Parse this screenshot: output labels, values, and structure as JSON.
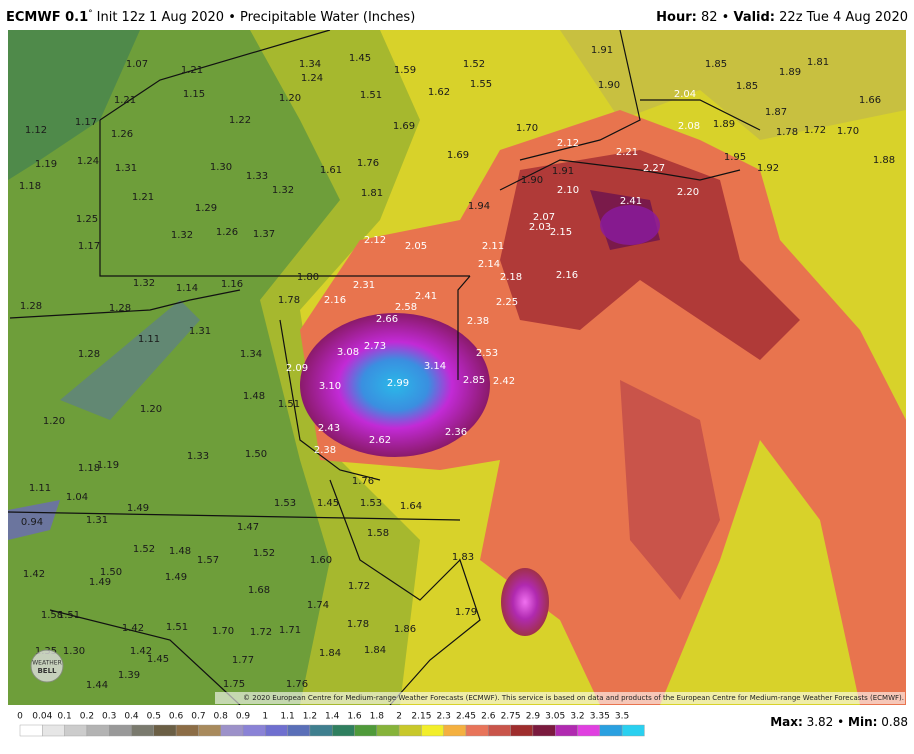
{
  "header": {
    "model": "ECMWF 0.1",
    "degree": "°",
    "info": "Init 12z 1 Aug 2020 • Precipitable Water (Inches)",
    "hour_key": "Hour:",
    "hour": "82",
    "sep": "•",
    "valid_key": "Valid:",
    "valid": "22z Tue 4 Aug 2020"
  },
  "stations": [
    "1.07",
    "1.21",
    "1.34",
    "1.24",
    "1.45",
    "1.59",
    "1.52",
    "1.55",
    "1.62",
    "1.51",
    "1.20",
    "1.15",
    "1.21",
    "1.91",
    "1.85",
    "1.89",
    "1.81",
    "1.90",
    "1.85",
    "2.04",
    "1.66",
    "1.12",
    "1.17",
    "1.26",
    "1.22",
    "1.69",
    "1.70",
    "2.12",
    "2.08",
    "1.89",
    "1.87",
    "1.78",
    "1.72",
    "1.70",
    "1.19",
    "1.24",
    "1.31",
    "1.30",
    "1.33",
    "1.76",
    "1.69",
    "1.61",
    "2.21",
    "1.95",
    "1.92",
    "1.88",
    "1.18",
    "1.21",
    "1.29",
    "1.32",
    "1.81",
    "1.90",
    "1.91",
    "2.10",
    "2.27",
    "2.20",
    "2.41",
    "1.94",
    "1.32",
    "1.26",
    "1.37",
    "2.12",
    "2.05",
    "2.11",
    "2.07",
    "2.03",
    "2.15",
    "1.17",
    "1.25",
    "1.32",
    "1.14",
    "1.16",
    "1.80",
    "2.31",
    "1.78",
    "2.16",
    "2.41",
    "2.58",
    "2.14",
    "2.18",
    "2.16",
    "2.25",
    "1.28",
    "1.28",
    "1.31",
    "2.66",
    "2.38",
    "1.11",
    "1.28",
    "1.34",
    "2.73",
    "3.08",
    "2.53",
    "2.09",
    "3.14",
    "3.10",
    "2.99",
    "2.85",
    "2.42",
    "1.48",
    "1.20",
    "1.51",
    "1.20",
    "2.43",
    "2.62",
    "2.36",
    "2.38",
    "1.18",
    "1.19",
    "1.33",
    "1.50",
    "1.76",
    "1.11",
    "1.04",
    "1.49",
    "1.53",
    "1.45",
    "1.53",
    "1.64",
    "0.94",
    "1.31",
    "1.47",
    "1.58",
    "1.52",
    "1.48",
    "1.52",
    "1.60",
    "1.83",
    "1.50",
    "1.57",
    "1.42",
    "1.49",
    "1.49",
    "1.68",
    "1.72",
    "1.74",
    "1.58",
    "1.51",
    "1.42",
    "1.51",
    "1.70",
    "1.72",
    "1.71",
    "1.78",
    "1.86",
    "1.79",
    "1.35",
    "1.30",
    "1.42",
    "1.45",
    "1.39",
    "1.77",
    "1.84",
    "1.84",
    "1.44",
    "1.75",
    "1.76"
  ],
  "colorbar": {
    "labels": [
      "0",
      "0.04",
      "0.1",
      "0.2",
      "0.3",
      "0.4",
      "0.5",
      "0.6",
      "0.7",
      "0.8",
      "0.9",
      "1",
      "1.1",
      "1.2",
      "1.4",
      "1.6",
      "1.8",
      "2",
      "2.15",
      "2.3",
      "2.45",
      "2.6",
      "2.75",
      "2.9",
      "3.05",
      "3.2",
      "3.35",
      "3.5"
    ],
    "colors": [
      "#ffffff",
      "#e6e6e6",
      "#cccccc",
      "#b3b3b3",
      "#999999",
      "#7a7a6e",
      "#6b5f45",
      "#8c6d46",
      "#a88a5c",
      "#9c91c9",
      "#8a82d6",
      "#6f6fcf",
      "#5a6fb8",
      "#3f7f8f",
      "#2f7f5f",
      "#4f9a3a",
      "#86b33a",
      "#c8c82a",
      "#f2ee2a",
      "#f4b040",
      "#e8745a",
      "#c9544a",
      "#9e2d2d",
      "#7a1a3e",
      "#b02ab0",
      "#e040e0",
      "#2aa0e0",
      "#2ad0f0"
    ]
  },
  "footer": {
    "max_key": "Max:",
    "max": "3.82",
    "sep": "•",
    "min_key": "Min:",
    "min": "0.88",
    "copyright": "© 2020 European Centre for Medium-range Weather Forecasts (ECMWF). This service is based on data and products of the European Centre for Medium-range Weather Forecasts (ECMWF)."
  },
  "logo": {
    "line1": "WEATHER",
    "line2": "BELL"
  }
}
